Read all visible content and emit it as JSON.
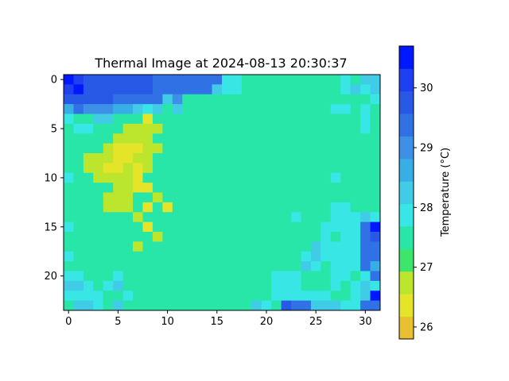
{
  "chart_data": {
    "type": "heatmap",
    "title": "Thermal Image at 2024-08-13 20:30:37",
    "xlabel": "",
    "ylabel": "",
    "rows": 24,
    "cols": 32,
    "x_ticks": [
      0,
      5,
      10,
      15,
      20,
      25,
      30
    ],
    "y_ticks": [
      0,
      5,
      10,
      15,
      20
    ],
    "colorbar": {
      "label": "Temperature (°C)",
      "vmin": 25.8,
      "vmax": 30.7,
      "ticks": [
        26,
        27,
        28,
        29,
        30
      ],
      "levels": [
        "#e8c030",
        "#e4e428",
        "#bce62e",
        "#3ce66a",
        "#28e6a8",
        "#38e6e6",
        "#40cce6",
        "#38aee6",
        "#3c90e6",
        "#3072e6",
        "#2858e6",
        "#1e40f0",
        "#0018ff"
      ]
    },
    "grid": false,
    "values": [
      [
        30.6,
        30.2,
        29.8,
        29.8,
        29.8,
        29.6,
        29.6,
        29.6,
        29.6,
        29.4,
        29.4,
        29.4,
        29.4,
        29.2,
        29.2,
        29.2,
        28.0,
        28.0,
        27.4,
        27.4,
        27.4,
        27.4,
        27.4,
        27.4,
        27.4,
        27.4,
        27.4,
        27.4,
        28.0,
        27.4,
        28.4,
        28.4
      ],
      [
        30.2,
        30.6,
        29.6,
        29.6,
        29.6,
        29.6,
        29.6,
        29.6,
        29.6,
        29.4,
        29.4,
        29.2,
        29.2,
        29.2,
        29.2,
        28.4,
        28.0,
        28.0,
        27.4,
        27.4,
        27.4,
        27.4,
        27.4,
        27.4,
        27.4,
        27.4,
        27.4,
        27.4,
        28.0,
        28.4,
        28.0,
        28.4
      ],
      [
        29.8,
        29.6,
        29.6,
        29.6,
        29.6,
        29.4,
        29.4,
        29.2,
        29.2,
        29.2,
        28.4,
        29.0,
        27.4,
        27.4,
        27.4,
        27.4,
        27.4,
        27.4,
        27.4,
        27.4,
        27.4,
        27.4,
        27.4,
        27.4,
        27.4,
        27.4,
        27.4,
        27.4,
        27.4,
        27.4,
        27.4,
        27.8
      ],
      [
        28.8,
        29.2,
        29.0,
        29.0,
        29.0,
        28.6,
        28.6,
        28.4,
        28.0,
        28.4,
        27.4,
        28.4,
        27.4,
        27.4,
        27.4,
        27.4,
        27.6,
        27.4,
        27.4,
        27.4,
        27.4,
        27.4,
        27.4,
        27.4,
        27.4,
        27.4,
        27.4,
        28.0,
        28.0,
        27.4,
        28.0,
        27.4
      ],
      [
        28.0,
        27.6,
        27.4,
        28.4,
        28.4,
        27.4,
        27.4,
        27.4,
        26.2,
        27.4,
        27.4,
        27.4,
        27.4,
        27.4,
        27.4,
        27.4,
        27.4,
        27.4,
        27.4,
        27.4,
        27.4,
        27.4,
        27.4,
        27.4,
        27.4,
        27.4,
        27.4,
        27.4,
        27.4,
        27.4,
        28.0,
        27.4
      ],
      [
        27.6,
        28.0,
        28.0,
        27.4,
        27.4,
        27.4,
        26.6,
        26.6,
        26.6,
        26.6,
        27.4,
        27.4,
        27.4,
        27.4,
        27.4,
        27.4,
        27.4,
        27.4,
        27.4,
        27.4,
        27.4,
        27.4,
        27.4,
        27.6,
        27.4,
        27.6,
        27.6,
        27.6,
        27.6,
        27.6,
        28.0,
        27.6
      ],
      [
        27.6,
        27.4,
        27.4,
        27.4,
        27.4,
        26.6,
        26.6,
        26.6,
        26.6,
        27.4,
        27.4,
        27.4,
        27.4,
        27.4,
        27.4,
        27.4,
        27.4,
        27.4,
        27.4,
        27.4,
        27.4,
        27.4,
        27.4,
        27.6,
        27.6,
        27.4,
        27.4,
        27.6,
        27.4,
        27.4,
        27.4,
        27.6
      ],
      [
        27.4,
        27.6,
        27.4,
        27.4,
        26.6,
        26.2,
        26.2,
        26.2,
        26.6,
        26.6,
        27.4,
        27.4,
        27.4,
        27.4,
        27.4,
        27.4,
        27.4,
        27.4,
        27.4,
        27.4,
        27.4,
        27.4,
        27.4,
        27.4,
        27.4,
        27.6,
        27.4,
        27.4,
        27.4,
        27.4,
        27.4,
        27.6
      ],
      [
        27.4,
        27.4,
        26.6,
        26.6,
        26.6,
        26.2,
        26.2,
        26.6,
        26.6,
        27.4,
        27.4,
        27.4,
        27.4,
        27.4,
        27.4,
        27.4,
        27.4,
        27.4,
        27.4,
        27.4,
        27.4,
        27.4,
        27.4,
        27.4,
        27.4,
        27.6,
        27.6,
        27.4,
        27.4,
        27.4,
        27.4,
        27.4
      ],
      [
        27.4,
        27.4,
        26.6,
        26.6,
        26.2,
        26.2,
        26.6,
        26.2,
        26.6,
        27.4,
        27.4,
        27.4,
        27.4,
        27.4,
        27.4,
        27.4,
        27.4,
        27.4,
        27.4,
        27.4,
        27.4,
        27.4,
        27.4,
        27.4,
        27.4,
        27.4,
        27.4,
        27.6,
        27.6,
        27.4,
        27.4,
        27.4
      ],
      [
        27.8,
        27.6,
        27.4,
        26.6,
        26.6,
        26.6,
        26.6,
        26.2,
        27.4,
        27.4,
        27.4,
        27.4,
        27.4,
        27.4,
        27.4,
        27.4,
        27.4,
        27.4,
        27.4,
        27.4,
        27.4,
        27.4,
        27.4,
        27.4,
        27.4,
        27.4,
        27.4,
        28.0,
        27.6,
        27.4,
        27.6,
        27.6
      ],
      [
        27.4,
        27.6,
        27.4,
        27.4,
        27.4,
        26.6,
        26.6,
        26.2,
        26.2,
        27.4,
        27.4,
        27.4,
        27.4,
        27.4,
        27.4,
        27.4,
        27.4,
        27.4,
        27.4,
        27.4,
        27.4,
        27.4,
        27.4,
        27.4,
        27.4,
        27.4,
        27.6,
        27.6,
        27.4,
        27.6,
        27.6,
        27.6
      ],
      [
        27.6,
        27.4,
        27.4,
        27.4,
        26.6,
        26.6,
        26.6,
        27.4,
        27.4,
        26.6,
        27.4,
        27.4,
        27.4,
        27.4,
        27.4,
        27.4,
        27.4,
        27.4,
        27.4,
        27.4,
        27.4,
        27.4,
        27.4,
        27.6,
        27.4,
        27.4,
        27.6,
        27.6,
        27.6,
        27.6,
        27.6,
        27.6
      ],
      [
        27.4,
        27.6,
        27.4,
        27.4,
        26.6,
        26.6,
        26.6,
        27.4,
        26.2,
        27.4,
        26.2,
        27.4,
        27.4,
        27.4,
        27.4,
        27.4,
        27.4,
        27.4,
        27.4,
        27.4,
        27.4,
        27.4,
        27.4,
        27.4,
        27.4,
        27.4,
        27.6,
        28.0,
        28.0,
        27.6,
        27.6,
        27.6
      ],
      [
        27.6,
        27.4,
        27.4,
        27.4,
        27.4,
        27.4,
        27.4,
        26.6,
        27.4,
        27.4,
        27.4,
        27.4,
        27.4,
        27.4,
        27.6,
        27.4,
        27.4,
        27.4,
        27.4,
        27.4,
        27.4,
        27.4,
        27.4,
        28.0,
        27.6,
        27.4,
        27.6,
        28.0,
        28.0,
        28.0,
        28.4,
        28.0
      ],
      [
        28.0,
        27.4,
        27.4,
        27.4,
        27.4,
        27.4,
        27.4,
        27.4,
        26.2,
        27.4,
        27.4,
        27.4,
        27.4,
        27.4,
        27.4,
        27.4,
        27.4,
        27.4,
        27.4,
        27.4,
        27.4,
        27.4,
        27.6,
        27.4,
        27.6,
        27.6,
        28.0,
        28.0,
        28.0,
        28.0,
        29.4,
        30.6
      ],
      [
        27.4,
        27.4,
        27.6,
        27.4,
        27.4,
        27.4,
        27.4,
        27.4,
        27.4,
        26.6,
        27.4,
        27.4,
        27.4,
        27.4,
        27.4,
        27.4,
        27.4,
        27.4,
        27.4,
        27.4,
        27.4,
        27.4,
        27.4,
        27.6,
        27.6,
        27.4,
        28.0,
        27.6,
        28.0,
        28.0,
        29.2,
        29.8
      ],
      [
        27.4,
        27.6,
        27.6,
        27.4,
        27.4,
        27.4,
        27.4,
        26.6,
        27.4,
        27.4,
        27.4,
        27.4,
        27.4,
        27.4,
        27.4,
        27.6,
        27.4,
        27.6,
        27.4,
        27.6,
        27.4,
        27.4,
        27.6,
        27.6,
        27.6,
        28.4,
        28.0,
        28.0,
        28.0,
        28.0,
        29.4,
        29.4
      ],
      [
        28.0,
        27.4,
        27.6,
        27.4,
        27.4,
        27.4,
        27.4,
        27.4,
        27.4,
        27.4,
        27.4,
        27.4,
        27.4,
        27.6,
        27.4,
        27.4,
        27.4,
        27.4,
        27.4,
        27.6,
        27.4,
        27.6,
        27.6,
        27.6,
        28.0,
        28.4,
        28.0,
        28.0,
        28.0,
        28.0,
        29.4,
        29.2
      ],
      [
        27.6,
        27.6,
        27.4,
        27.4,
        27.4,
        27.4,
        27.6,
        27.4,
        27.4,
        27.4,
        27.4,
        27.4,
        27.4,
        27.4,
        27.4,
        27.4,
        27.4,
        27.6,
        27.4,
        27.6,
        27.4,
        27.6,
        27.6,
        27.6,
        28.4,
        28.0,
        27.6,
        28.0,
        28.0,
        28.0,
        29.4,
        28.8
      ],
      [
        28.0,
        28.0,
        27.6,
        27.6,
        27.6,
        28.0,
        27.4,
        27.4,
        27.4,
        27.4,
        27.4,
        27.4,
        27.4,
        27.4,
        27.4,
        27.4,
        27.6,
        27.4,
        27.6,
        27.6,
        27.6,
        28.0,
        28.0,
        28.0,
        27.6,
        27.6,
        27.6,
        28.0,
        28.0,
        27.6,
        28.0,
        29.4
      ],
      [
        28.4,
        28.4,
        28.0,
        27.6,
        28.0,
        28.4,
        27.6,
        27.4,
        27.6,
        27.4,
        27.4,
        27.4,
        27.4,
        27.4,
        27.4,
        27.6,
        27.4,
        27.6,
        27.4,
        27.6,
        27.6,
        28.0,
        28.0,
        28.0,
        27.6,
        27.6,
        27.6,
        28.0,
        27.4,
        28.0,
        28.4,
        28.0
      ],
      [
        28.0,
        28.0,
        28.0,
        28.0,
        27.6,
        27.6,
        28.0,
        27.6,
        27.4,
        27.4,
        27.6,
        27.4,
        27.4,
        27.4,
        27.6,
        27.6,
        27.6,
        27.4,
        27.6,
        27.6,
        27.6,
        28.0,
        28.0,
        28.0,
        28.0,
        28.0,
        28.0,
        27.6,
        27.6,
        28.0,
        28.4,
        30.6
      ],
      [
        27.4,
        28.4,
        28.4,
        28.0,
        27.6,
        28.4,
        27.4,
        27.6,
        27.4,
        27.6,
        27.4,
        27.6,
        27.4,
        27.4,
        27.6,
        27.6,
        27.4,
        27.4,
        27.4,
        28.4,
        28.0,
        27.6,
        29.6,
        29.4,
        29.4,
        28.4,
        28.4,
        28.4,
        28.0,
        28.0,
        29.2,
        29.2
      ]
    ]
  }
}
